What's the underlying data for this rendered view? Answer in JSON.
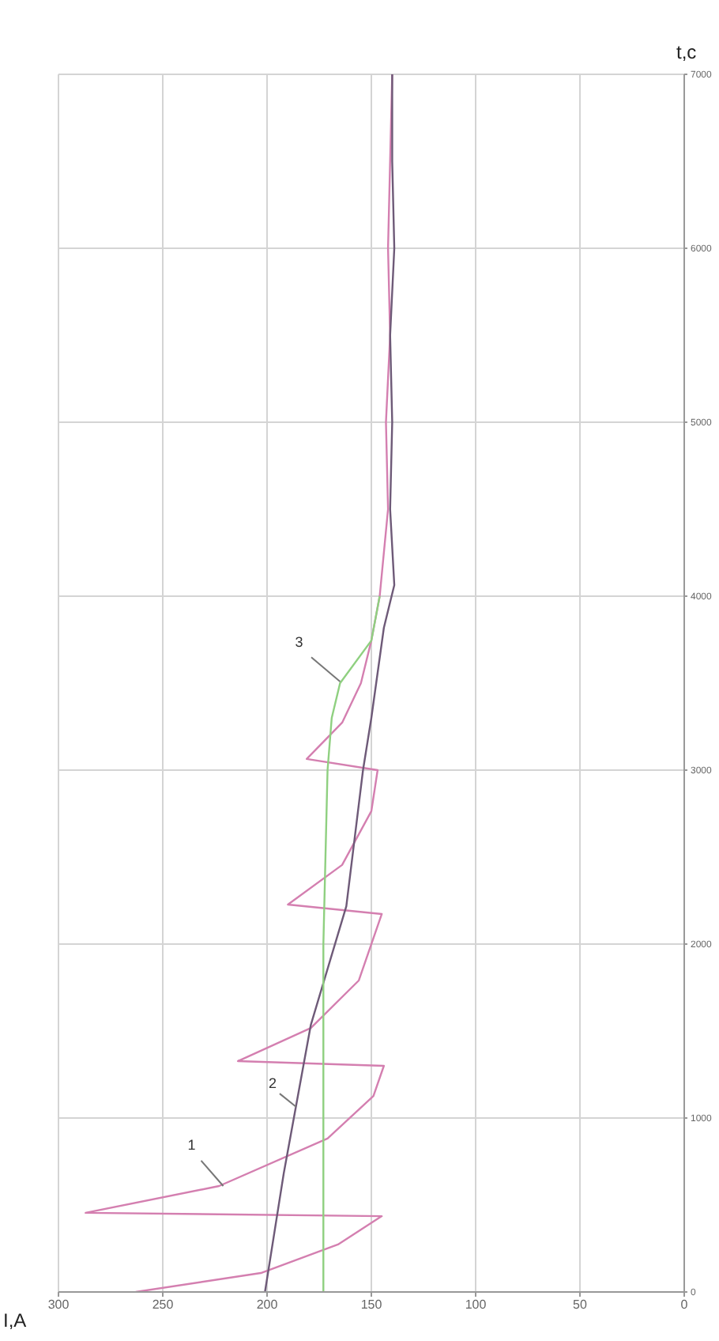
{
  "chart_data": {
    "type": "line",
    "xlabel": "I,A",
    "ylabel": "t,c",
    "xlim": [
      300,
      0
    ],
    "xticks": [
      300,
      250,
      200,
      150,
      100,
      50,
      0
    ],
    "ylim": [
      0,
      7000
    ],
    "yticks": [
      0,
      1000,
      2000,
      3000,
      4000,
      5000,
      6000,
      7000
    ],
    "grid": true,
    "marker": "none",
    "line_style": "solid",
    "series": [
      {
        "color": "#d47fb0",
        "values": [
          0,
          109,
          273,
          436,
          455,
          609,
          882,
          1127,
          1300,
          1327,
          1518,
          1791,
          2173,
          2227,
          2455,
          2764,
          3000,
          3064,
          3273,
          3500,
          3745,
          4000,
          4500,
          5000,
          5500,
          6000,
          6500,
          7000
        ],
        "x": [
          263,
          203,
          166,
          145,
          287,
          223,
          171,
          149,
          144,
          214,
          179,
          156,
          145,
          190,
          164,
          150,
          147,
          181,
          164,
          155,
          150,
          146,
          142,
          143,
          141,
          142,
          141,
          140
        ]
      },
      {
        "color": "#6e5a78",
        "values": [
          0,
          682,
          1536,
          2218,
          3000,
          3300,
          3818,
          4064,
          4500,
          5000,
          5500,
          6000,
          6500,
          7000
        ],
        "x": [
          201,
          192,
          179,
          162,
          154,
          150,
          144,
          139,
          141,
          140,
          141,
          139,
          140,
          140
        ]
      },
      {
        "color": "#8fd080",
        "values": [
          0,
          1000,
          2000,
          2500,
          3000,
          3300,
          3500,
          3745,
          4000
        ],
        "x": [
          173,
          173,
          173,
          172,
          171,
          169,
          165,
          150,
          146
        ]
      }
    ],
    "annotations": [
      {
        "text": "1",
        "x": 221,
        "y": 609
      },
      {
        "text": "2",
        "x": 186,
        "y": 1064
      },
      {
        "text": "3",
        "x": 165,
        "y": 3509
      }
    ]
  }
}
